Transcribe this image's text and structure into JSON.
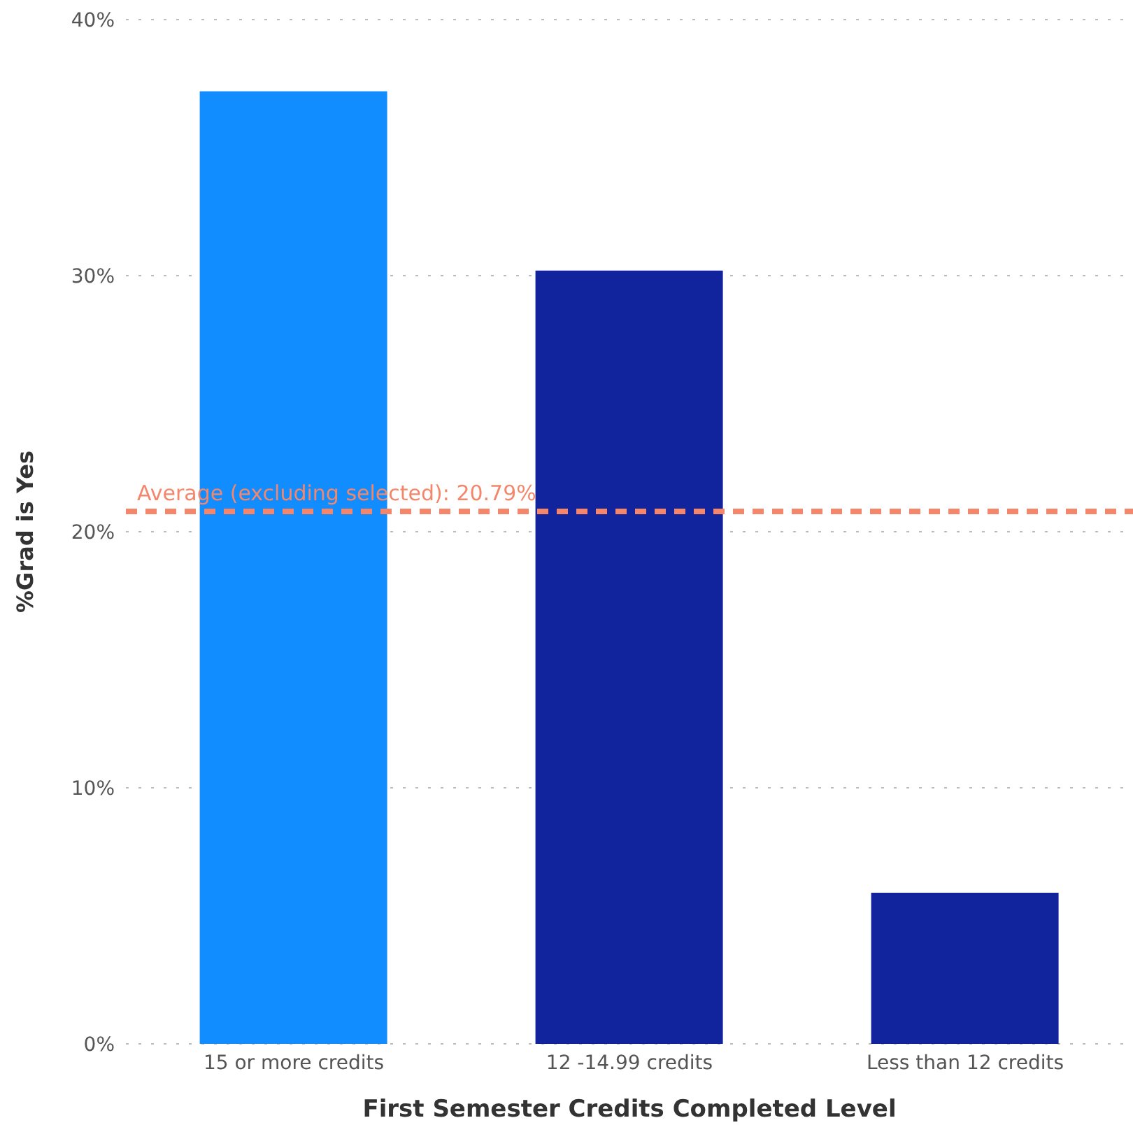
{
  "chart_data": {
    "type": "bar",
    "xlabel": "First Semester Credits Completed Level",
    "ylabel": "%Grad is Yes",
    "categories": [
      "15 or more credits",
      "12 -14.99 credits",
      "Less than 12 credits"
    ],
    "values": [
      37.2,
      30.2,
      5.9
    ],
    "colors": [
      "#118dff",
      "#12239e",
      "#12239e"
    ],
    "ylim": [
      0,
      40
    ],
    "yticks": [
      {
        "value": 0,
        "label": "0%"
      },
      {
        "value": 10,
        "label": "10%"
      },
      {
        "value": 20,
        "label": "20%"
      },
      {
        "value": 30,
        "label": "30%"
      },
      {
        "value": 40,
        "label": "40%"
      }
    ],
    "grid": "y",
    "ref_lines": [
      {
        "axis": "y",
        "value": 20.79,
        "label": "Average (excluding selected): 20.79%",
        "color": "#f4876b",
        "line_style": "dashed"
      }
    ]
  }
}
